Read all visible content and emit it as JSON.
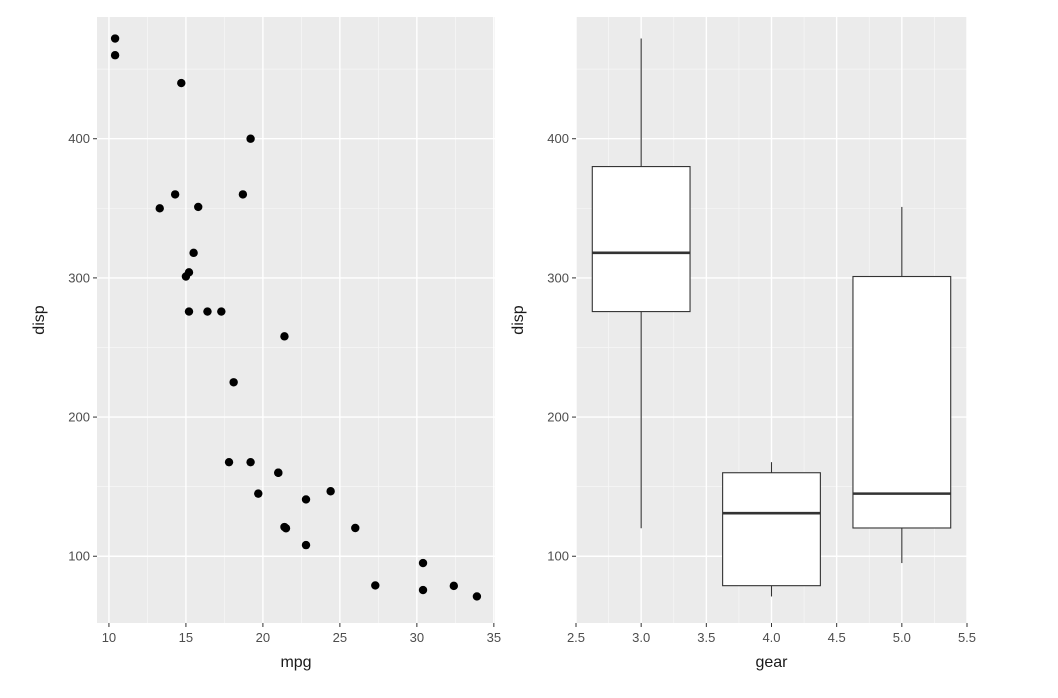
{
  "chart_data": [
    {
      "type": "scatter",
      "title": "",
      "xlabel": "mpg",
      "ylabel": "disp",
      "xlim": [
        9.225,
        35.075
      ],
      "ylim": [
        52.03,
        487.47
      ],
      "grid": true,
      "x_ticks": [
        10,
        15,
        20,
        25,
        30,
        35
      ],
      "x_tick_labels": [
        "10",
        "15",
        "20",
        "25",
        "30",
        "35"
      ],
      "y_ticks": [
        100,
        200,
        300,
        400
      ],
      "y_tick_labels": [
        "100",
        "200",
        "300",
        "400"
      ],
      "points": [
        {
          "x": 21.0,
          "y": 160
        },
        {
          "x": 21.0,
          "y": 160
        },
        {
          "x": 22.8,
          "y": 108
        },
        {
          "x": 21.4,
          "y": 258
        },
        {
          "x": 18.7,
          "y": 360
        },
        {
          "x": 18.1,
          "y": 225
        },
        {
          "x": 14.3,
          "y": 360
        },
        {
          "x": 24.4,
          "y": 146.7
        },
        {
          "x": 22.8,
          "y": 140.8
        },
        {
          "x": 19.2,
          "y": 167.6
        },
        {
          "x": 17.8,
          "y": 167.6
        },
        {
          "x": 16.4,
          "y": 275.8
        },
        {
          "x": 17.3,
          "y": 275.8
        },
        {
          "x": 15.2,
          "y": 275.8
        },
        {
          "x": 10.4,
          "y": 472
        },
        {
          "x": 10.4,
          "y": 460
        },
        {
          "x": 14.7,
          "y": 440
        },
        {
          "x": 32.4,
          "y": 78.7
        },
        {
          "x": 30.4,
          "y": 75.7
        },
        {
          "x": 33.9,
          "y": 71.1
        },
        {
          "x": 21.5,
          "y": 120.1
        },
        {
          "x": 15.5,
          "y": 318
        },
        {
          "x": 15.2,
          "y": 304
        },
        {
          "x": 13.3,
          "y": 350
        },
        {
          "x": 19.2,
          "y": 400
        },
        {
          "x": 27.3,
          "y": 79
        },
        {
          "x": 26.0,
          "y": 120.3
        },
        {
          "x": 30.4,
          "y": 95.1
        },
        {
          "x": 15.8,
          "y": 351
        },
        {
          "x": 19.7,
          "y": 145
        },
        {
          "x": 15.0,
          "y": 301
        },
        {
          "x": 21.4,
          "y": 121
        }
      ]
    },
    {
      "type": "box",
      "title": "",
      "xlabel": "gear",
      "ylabel": "disp",
      "xlim": [
        2.5,
        5.5
      ],
      "ylim": [
        52.03,
        487.47
      ],
      "grid": true,
      "x_ticks": [
        2.5,
        3.0,
        3.5,
        4.0,
        4.5,
        5.0,
        5.5
      ],
      "x_tick_labels": [
        "2.5",
        "3.0",
        "3.5",
        "4.0",
        "4.5",
        "5.0",
        "5.5"
      ],
      "y_ticks": [
        100,
        200,
        300,
        400
      ],
      "y_tick_labels": [
        "100",
        "200",
        "300",
        "400"
      ],
      "box_width": 0.75,
      "boxes": [
        {
          "gear": 3.0,
          "min": 120.1,
          "q1": 275.8,
          "median": 318,
          "q3": 380,
          "max": 472
        },
        {
          "gear": 4.0,
          "min": 71.1,
          "q1": 78.85,
          "median": 130.9,
          "q3": 160,
          "max": 167.6
        },
        {
          "gear": 5.0,
          "min": 95.1,
          "q1": 120.3,
          "median": 145,
          "q3": 301,
          "max": 351
        }
      ]
    }
  ]
}
